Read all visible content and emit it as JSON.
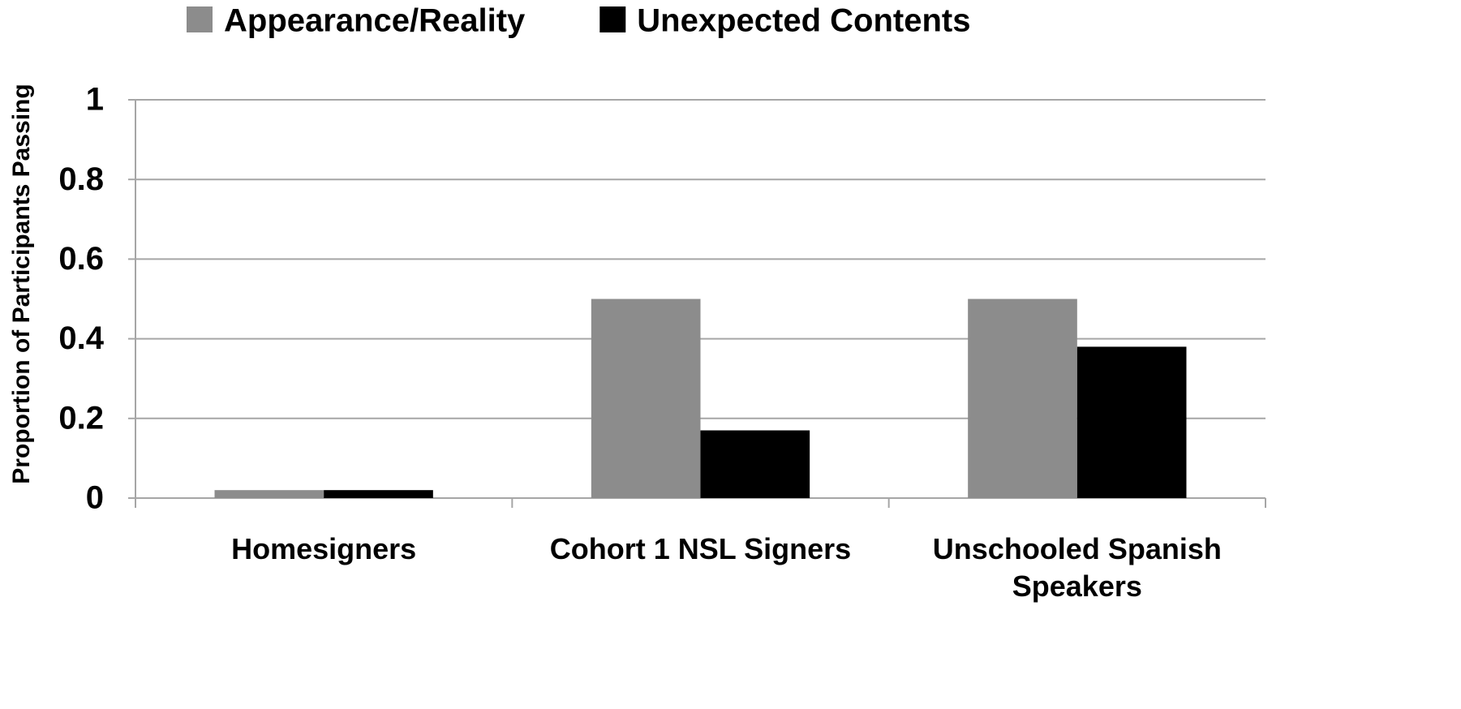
{
  "chart_data": {
    "type": "bar",
    "y_label": "Proportion of Participants Passing",
    "categories": [
      "Homesigners",
      "Cohort 1 NSL Signers",
      "Unschooled Spanish Speakers"
    ],
    "series": [
      {
        "name": "Appearance/Reality",
        "color": "#8c8c8c",
        "values": [
          0.02,
          0.5,
          0.5
        ]
      },
      {
        "name": "Unexpected Contents",
        "color": "#000000",
        "values": [
          0.02,
          0.17,
          0.38
        ]
      }
    ],
    "ylim": [
      0,
      1
    ],
    "yticks": [
      0,
      0.2,
      0.4,
      0.6,
      0.8,
      1
    ],
    "grid": true,
    "legend": "top"
  }
}
